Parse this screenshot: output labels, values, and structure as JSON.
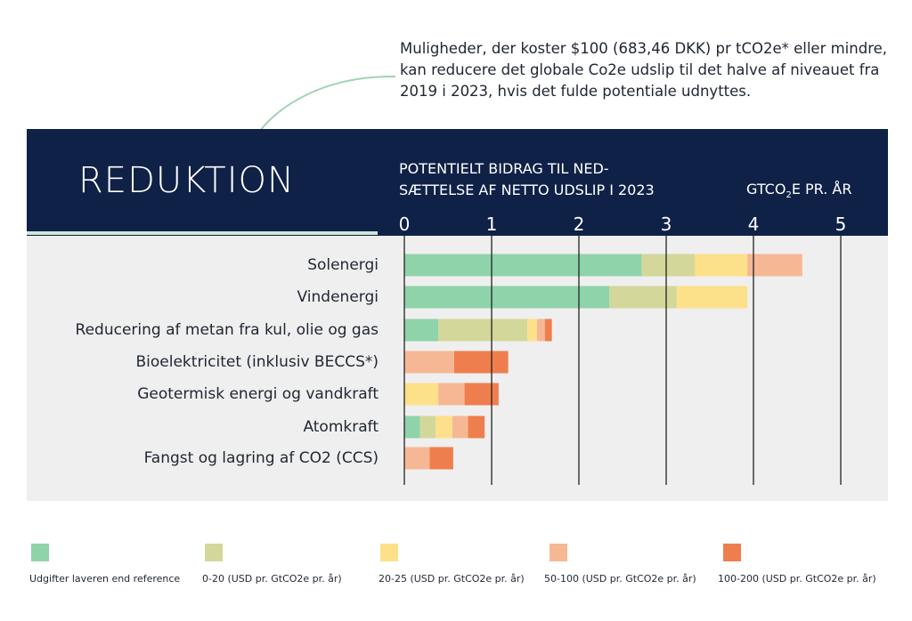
{
  "annotation": "Muligheder, der koster $100 (683,46 DKK) pr tCO2e* eller mindre, kan reducere det globale Co2e udslip til det halve af niveauet fra 2019 i 2023, hvis det fulde potentiale udnyttes.",
  "colors": {
    "navy": "#0f2147",
    "panel": "#efefef"
  },
  "chart_data": {
    "type": "bar",
    "orientation": "horizontal",
    "stacked": true,
    "title": "REDUKTION",
    "xlabel": "POTENTIELT BIDRAG TIL NED-SÆTTELSE AF NETTO UDSLIP I 2023",
    "xlabel_line1": "POTENTIELT BIDRAG TIL NED-",
    "xlabel_line2": "SÆTTELSE AF NETTO UDSLIP I 2023",
    "unit_prefix": "GTCO",
    "unit_sub": "2",
    "unit_suffix": "E PR. ÅR",
    "xlim": [
      0,
      5
    ],
    "xticks": [
      "0",
      "1",
      "2",
      "3",
      "4",
      "5"
    ],
    "grid": true,
    "legend_position": "bottom",
    "categories": [
      "Solenergi",
      "Vindenergi",
      "Reducering af metan fra kul, olie og gas",
      "Bioelektricitet (inklusiv BECCS*)",
      "Geotermisk energi og vandkraft",
      "Atomkraft",
      "Fangst og lagring af CO2 (CCS)"
    ],
    "series": [
      {
        "name": "Udgifter laveren end reference",
        "color": "#8fd3ab",
        "values": [
          2.72,
          2.35,
          0.39,
          0,
          0,
          0.18,
          0
        ]
      },
      {
        "name": "0-20 (USD pr. GtCO2e pr. år)",
        "color": "#d4d79a",
        "values": [
          0.61,
          0.77,
          1.02,
          0,
          0,
          0.18,
          0
        ]
      },
      {
        "name": "20-25 (USD pr. GtCO2e pr. år)",
        "color": "#fde08a",
        "values": [
          0.6,
          0.81,
          0.11,
          0,
          0.39,
          0.19,
          0
        ]
      },
      {
        "name": "50-100 (USD pr. GtCO2e pr. år)",
        "color": "#f6b894",
        "values": [
          0.63,
          0,
          0.09,
          0.57,
          0.3,
          0.18,
          0.29
        ]
      },
      {
        "name": "100-200 (USD pr. GtCO2e pr. år)",
        "color": "#ef7e4e",
        "values": [
          0,
          0,
          0.08,
          0.62,
          0.39,
          0.19,
          0.27
        ]
      }
    ]
  }
}
